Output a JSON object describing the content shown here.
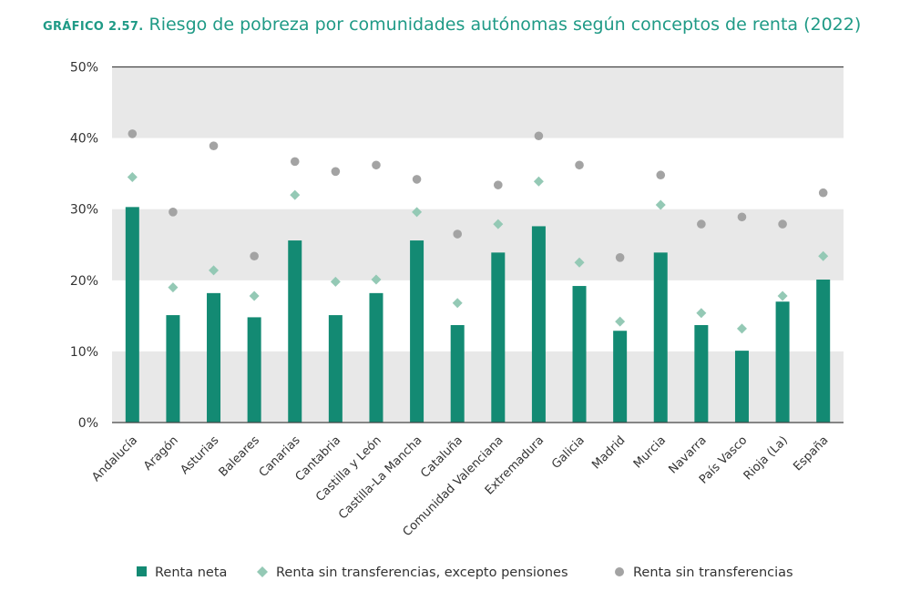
{
  "chart_data": {
    "type": "bar",
    "title_number": "GRÁFICO 2.57.",
    "title": "Riesgo de pobreza por comunidades autónomas según conceptos de renta (2022)",
    "xlabel": "",
    "ylabel": "",
    "ylim": [
      0,
      50
    ],
    "yticks": [
      0,
      10,
      20,
      30,
      40,
      50
    ],
    "ytick_labels": [
      "0%",
      "10%",
      "20%",
      "30%",
      "40%",
      "50%"
    ],
    "grid": "alternating horizontal bands",
    "legend_position": "bottom",
    "categories": [
      "Andalucía",
      "Aragón",
      "Asturias",
      "Baleares",
      "Canarias",
      "Cantabria",
      "Castilla y León",
      "Castilla-La Mancha",
      "Cataluña",
      "Comunidad Valenciana",
      "Extremadura",
      "Galicia",
      "Madrid",
      "Murcia",
      "Navarra",
      "País Vasco",
      "Rioja (La)",
      "España"
    ],
    "series": [
      {
        "name": "Renta neta",
        "marker": "bar",
        "color": "#138a73",
        "values": [
          30.3,
          15.1,
          18.2,
          14.8,
          25.6,
          15.1,
          18.2,
          25.6,
          13.7,
          23.9,
          27.6,
          19.2,
          12.9,
          23.9,
          13.7,
          10.1,
          17.0,
          20.1
        ]
      },
      {
        "name": "Renta sin transferencias, excepto pensiones",
        "marker": "diamond",
        "color": "#94c9b5",
        "values": [
          34.5,
          19.0,
          21.4,
          17.8,
          32.0,
          19.8,
          20.1,
          29.6,
          16.8,
          27.9,
          33.9,
          22.5,
          14.2,
          30.6,
          15.4,
          13.2,
          17.8,
          23.4
        ]
      },
      {
        "name": "Renta sin transferencias",
        "marker": "circle",
        "color": "#a3a3a3",
        "values": [
          40.6,
          29.6,
          38.9,
          23.4,
          36.7,
          35.3,
          36.2,
          34.2,
          26.5,
          33.4,
          40.3,
          36.2,
          23.2,
          34.8,
          27.9,
          28.9,
          27.9,
          32.3
        ]
      }
    ]
  }
}
